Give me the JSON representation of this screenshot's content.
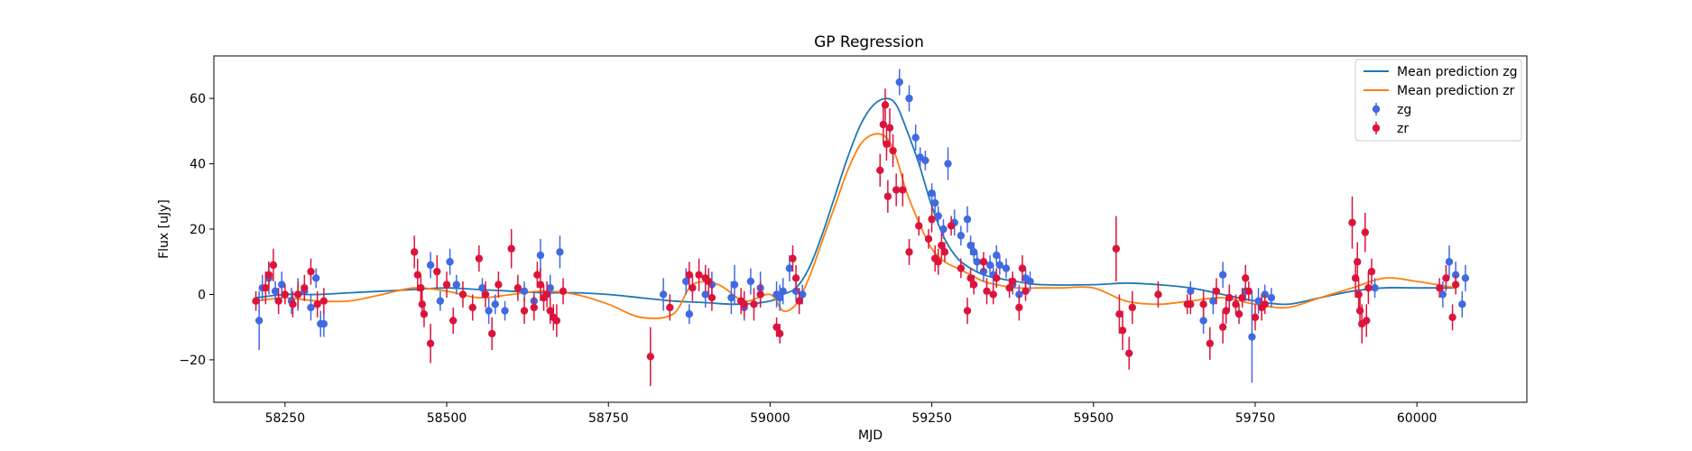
{
  "chart_data": {
    "type": "scatter",
    "title": "GP Regression",
    "xlabel": "MJD",
    "ylabel": "Flux [uJy]",
    "xlim": [
      58140,
      60170
    ],
    "ylim": [
      -33,
      73
    ],
    "xticks": [
      58250,
      58500,
      58750,
      59000,
      59250,
      59500,
      59750,
      60000
    ],
    "yticks": [
      -20,
      0,
      20,
      40,
      60
    ],
    "grid": false,
    "legend_position": "top-right",
    "colors": {
      "mean_zg": "#1f77b4",
      "mean_zr": "#ff7f0e",
      "zg": "#4169e1",
      "zr": "#dc143c"
    },
    "legend": [
      {
        "label": "Mean prediction zg",
        "kind": "line",
        "color": "#1f77b4"
      },
      {
        "label": "Mean prediction zr",
        "kind": "line",
        "color": "#ff7f0e"
      },
      {
        "label": "zg",
        "kind": "errorbar",
        "color": "#4169e1"
      },
      {
        "label": "zr",
        "kind": "errorbar",
        "color": "#dc143c"
      }
    ],
    "lines": [
      {
        "name": "Mean prediction zg",
        "x": [
          58205,
          58250,
          58300,
          58350,
          58400,
          58450,
          58500,
          58550,
          58600,
          58650,
          58700,
          58750,
          58800,
          58850,
          58900,
          58950,
          59000,
          59020,
          59040,
          59060,
          59080,
          59100,
          59120,
          59140,
          59160,
          59180,
          59195,
          59210,
          59230,
          59250,
          59270,
          59290,
          59310,
          59330,
          59350,
          59380,
          59420,
          59500,
          59550,
          59600,
          59650,
          59700,
          59750,
          59800,
          59850,
          59900,
          59950,
          60000,
          60060
        ],
        "y": [
          -1,
          0,
          0,
          0.5,
          1,
          1.5,
          2,
          1.5,
          1,
          0.5,
          0.5,
          0,
          -1,
          -2,
          -2.5,
          -3,
          -2,
          0,
          2,
          8,
          18,
          30,
          42,
          52,
          58,
          60,
          58,
          51,
          40,
          27,
          17,
          11,
          8,
          6,
          5,
          4,
          3,
          3,
          3.5,
          3,
          2,
          0,
          -2,
          -3,
          -1,
          1,
          2,
          2,
          2
        ]
      },
      {
        "name": "Mean prediction zr",
        "x": [
          58205,
          58250,
          58300,
          58350,
          58400,
          58450,
          58500,
          58550,
          58600,
          58650,
          58700,
          58750,
          58800,
          58850,
          58880,
          58920,
          58960,
          59000,
          59020,
          59040,
          59060,
          59080,
          59100,
          59120,
          59140,
          59160,
          59180,
          59195,
          59210,
          59230,
          59250,
          59270,
          59290,
          59310,
          59330,
          59350,
          59380,
          59420,
          59450,
          59500,
          59550,
          59600,
          59650,
          59700,
          59750,
          59800,
          59850,
          59900,
          59950,
          60000,
          60060
        ],
        "y": [
          -2,
          -1,
          -2,
          -2,
          0,
          2,
          1,
          -1,
          0,
          1,
          0,
          -3,
          -7,
          -6,
          3,
          3,
          -2,
          0,
          -5,
          -3,
          5,
          16,
          27,
          38,
          46,
          49,
          48,
          42,
          32,
          22,
          14,
          10,
          8,
          6,
          4,
          3,
          2,
          2,
          2,
          2,
          -2,
          -3,
          -2,
          -1,
          -3,
          -4,
          -1,
          2,
          5,
          4,
          2
        ]
      }
    ],
    "series": [
      {
        "name": "zg",
        "points": [
          [
            58210,
            -8,
            9
          ],
          [
            58215,
            2,
            4
          ],
          [
            58225,
            5,
            5
          ],
          [
            58235,
            1,
            3
          ],
          [
            58245,
            3,
            4
          ],
          [
            58260,
            -2,
            4
          ],
          [
            58270,
            0,
            5
          ],
          [
            58280,
            1,
            3
          ],
          [
            58290,
            -4,
            4
          ],
          [
            58298,
            5,
            3
          ],
          [
            58305,
            -9,
            4
          ],
          [
            58310,
            -9,
            4
          ],
          [
            58475,
            9,
            4
          ],
          [
            58490,
            -2,
            3
          ],
          [
            58505,
            10,
            4
          ],
          [
            58515,
            3,
            3
          ],
          [
            58555,
            2,
            3
          ],
          [
            58565,
            -5,
            4
          ],
          [
            58575,
            -3,
            3
          ],
          [
            58590,
            -5,
            3
          ],
          [
            58620,
            1,
            3
          ],
          [
            58635,
            -2,
            3
          ],
          [
            58645,
            12,
            5
          ],
          [
            58660,
            2,
            4
          ],
          [
            58675,
            13,
            5
          ],
          [
            58835,
            0,
            5
          ],
          [
            58870,
            4,
            4
          ],
          [
            58875,
            -6,
            3
          ],
          [
            58900,
            0,
            4
          ],
          [
            58910,
            3,
            4
          ],
          [
            58940,
            -1,
            5
          ],
          [
            58945,
            3,
            6
          ],
          [
            58960,
            -4,
            4
          ],
          [
            58970,
            4,
            4
          ],
          [
            58985,
            2,
            5
          ],
          [
            59010,
            0,
            4
          ],
          [
            59015,
            -1,
            4
          ],
          [
            59020,
            1,
            4
          ],
          [
            59030,
            8,
            4
          ],
          [
            59040,
            1,
            3
          ],
          [
            59050,
            0,
            3
          ],
          [
            59200,
            65,
            4
          ],
          [
            59215,
            60,
            4
          ],
          [
            59225,
            48,
            4
          ],
          [
            59232,
            42,
            3
          ],
          [
            59240,
            41,
            3
          ],
          [
            59250,
            31,
            3
          ],
          [
            59255,
            28,
            3
          ],
          [
            59260,
            24,
            3
          ],
          [
            59268,
            20,
            3
          ],
          [
            59275,
            40,
            5
          ],
          [
            59285,
            22,
            4
          ],
          [
            59295,
            18,
            3
          ],
          [
            59305,
            23,
            4
          ],
          [
            59310,
            15,
            3
          ],
          [
            59315,
            13,
            3
          ],
          [
            59320,
            10,
            3
          ],
          [
            59330,
            7,
            3
          ],
          [
            59340,
            9,
            3
          ],
          [
            59345,
            6,
            3
          ],
          [
            59350,
            12,
            3
          ],
          [
            59355,
            9,
            3
          ],
          [
            59365,
            8,
            3
          ],
          [
            59375,
            3,
            3
          ],
          [
            59385,
            0,
            3
          ],
          [
            59395,
            5,
            3
          ],
          [
            59402,
            4,
            3
          ],
          [
            59650,
            1,
            3
          ],
          [
            59670,
            -8,
            4
          ],
          [
            59685,
            -2,
            4
          ],
          [
            59700,
            6,
            4
          ],
          [
            59710,
            -1,
            3
          ],
          [
            59735,
            1,
            3
          ],
          [
            59745,
            -13,
            14
          ],
          [
            59755,
            -2,
            4
          ],
          [
            59765,
            0,
            3
          ],
          [
            59775,
            -1,
            3
          ],
          [
            59935,
            2,
            3
          ],
          [
            60040,
            0,
            4
          ],
          [
            60050,
            10,
            5
          ],
          [
            60060,
            6,
            4
          ],
          [
            60070,
            -3,
            4
          ],
          [
            60075,
            5,
            4
          ]
        ]
      },
      {
        "name": "zr",
        "points": [
          [
            58205,
            -2,
            3
          ],
          [
            58220,
            2,
            5
          ],
          [
            58225,
            6,
            4
          ],
          [
            58232,
            9,
            5
          ],
          [
            58240,
            -2,
            4
          ],
          [
            58250,
            0,
            3
          ],
          [
            58262,
            -3,
            4
          ],
          [
            58270,
            0,
            4
          ],
          [
            58280,
            2,
            4
          ],
          [
            58290,
            7,
            4
          ],
          [
            58300,
            -3,
            4
          ],
          [
            58310,
            -2,
            4
          ],
          [
            58450,
            13,
            5
          ],
          [
            58455,
            6,
            5
          ],
          [
            58460,
            2,
            4
          ],
          [
            58462,
            -3,
            4
          ],
          [
            58465,
            -6,
            4
          ],
          [
            58475,
            -15,
            6
          ],
          [
            58485,
            7,
            5
          ],
          [
            58500,
            3,
            4
          ],
          [
            58510,
            -8,
            4
          ],
          [
            58525,
            0,
            4
          ],
          [
            58540,
            -4,
            4
          ],
          [
            58550,
            11,
            4
          ],
          [
            58560,
            0,
            4
          ],
          [
            58570,
            -12,
            5
          ],
          [
            58580,
            3,
            4
          ],
          [
            58600,
            14,
            6
          ],
          [
            58610,
            2,
            4
          ],
          [
            58620,
            -5,
            4
          ],
          [
            58635,
            -4,
            4
          ],
          [
            58640,
            6,
            4
          ],
          [
            58645,
            3,
            5
          ],
          [
            58650,
            -1,
            4
          ],
          [
            58655,
            0,
            4
          ],
          [
            58660,
            -5,
            4
          ],
          [
            58665,
            -7,
            4
          ],
          [
            58670,
            -8,
            5
          ],
          [
            58680,
            1,
            4
          ],
          [
            58815,
            -19,
            9
          ],
          [
            58845,
            -4,
            4
          ],
          [
            58875,
            6,
            4
          ],
          [
            58880,
            2,
            4
          ],
          [
            58890,
            6,
            5
          ],
          [
            58900,
            5,
            4
          ],
          [
            58905,
            4,
            4
          ],
          [
            58910,
            -1,
            4
          ],
          [
            58955,
            -2,
            4
          ],
          [
            58960,
            -3,
            4
          ],
          [
            58975,
            -3,
            5
          ],
          [
            58985,
            0,
            4
          ],
          [
            59010,
            -10,
            3
          ],
          [
            59015,
            -12,
            3
          ],
          [
            59035,
            11,
            4
          ],
          [
            59040,
            5,
            4
          ],
          [
            59045,
            -2,
            4
          ],
          [
            59170,
            38,
            5
          ],
          [
            59175,
            52,
            6
          ],
          [
            59178,
            58,
            5
          ],
          [
            59180,
            46,
            5
          ],
          [
            59182,
            30,
            5
          ],
          [
            59185,
            51,
            6
          ],
          [
            59190,
            44,
            5
          ],
          [
            59195,
            32,
            5
          ],
          [
            59205,
            32,
            5
          ],
          [
            59215,
            13,
            4
          ],
          [
            59230,
            21,
            3
          ],
          [
            59245,
            17,
            3
          ],
          [
            59250,
            23,
            4
          ],
          [
            59255,
            11,
            4
          ],
          [
            59260,
            10,
            4
          ],
          [
            59265,
            15,
            4
          ],
          [
            59270,
            13,
            3
          ],
          [
            59280,
            21,
            3
          ],
          [
            59295,
            8,
            3
          ],
          [
            59305,
            -5,
            4
          ],
          [
            59310,
            5,
            3
          ],
          [
            59315,
            3,
            3
          ],
          [
            59330,
            10,
            3
          ],
          [
            59335,
            1,
            4
          ],
          [
            59345,
            0,
            3
          ],
          [
            59350,
            5,
            3
          ],
          [
            59370,
            2,
            3
          ],
          [
            59375,
            4,
            3
          ],
          [
            59385,
            -4,
            4
          ],
          [
            59390,
            8,
            4
          ],
          [
            59395,
            1,
            3
          ],
          [
            59535,
            14,
            10
          ],
          [
            59540,
            -6,
            6
          ],
          [
            59545,
            -11,
            6
          ],
          [
            59555,
            -18,
            5
          ],
          [
            59560,
            -4,
            5
          ],
          [
            59600,
            0,
            4
          ],
          [
            59645,
            -3,
            3
          ],
          [
            59650,
            -3,
            3
          ],
          [
            59670,
            -3,
            4
          ],
          [
            59680,
            -15,
            5
          ],
          [
            59690,
            1,
            4
          ],
          [
            59700,
            -10,
            5
          ],
          [
            59705,
            -5,
            4
          ],
          [
            59710,
            -1,
            4
          ],
          [
            59720,
            -3,
            3
          ],
          [
            59725,
            -6,
            3
          ],
          [
            59730,
            -1,
            3
          ],
          [
            59735,
            5,
            4
          ],
          [
            59740,
            1,
            3
          ],
          [
            59750,
            -7,
            4
          ],
          [
            59760,
            -4,
            4
          ],
          [
            59765,
            -3,
            3
          ],
          [
            59900,
            22,
            8
          ],
          [
            59905,
            5,
            6
          ],
          [
            59908,
            10,
            6
          ],
          [
            59910,
            0,
            5
          ],
          [
            59912,
            -5,
            5
          ],
          [
            59915,
            -9,
            6
          ],
          [
            59920,
            19,
            6
          ],
          [
            59922,
            -8,
            5
          ],
          [
            59925,
            2,
            5
          ],
          [
            59930,
            7,
            4
          ],
          [
            60035,
            2,
            3
          ],
          [
            60045,
            5,
            4
          ],
          [
            60055,
            -7,
            4
          ],
          [
            60060,
            3,
            3
          ]
        ]
      }
    ]
  }
}
